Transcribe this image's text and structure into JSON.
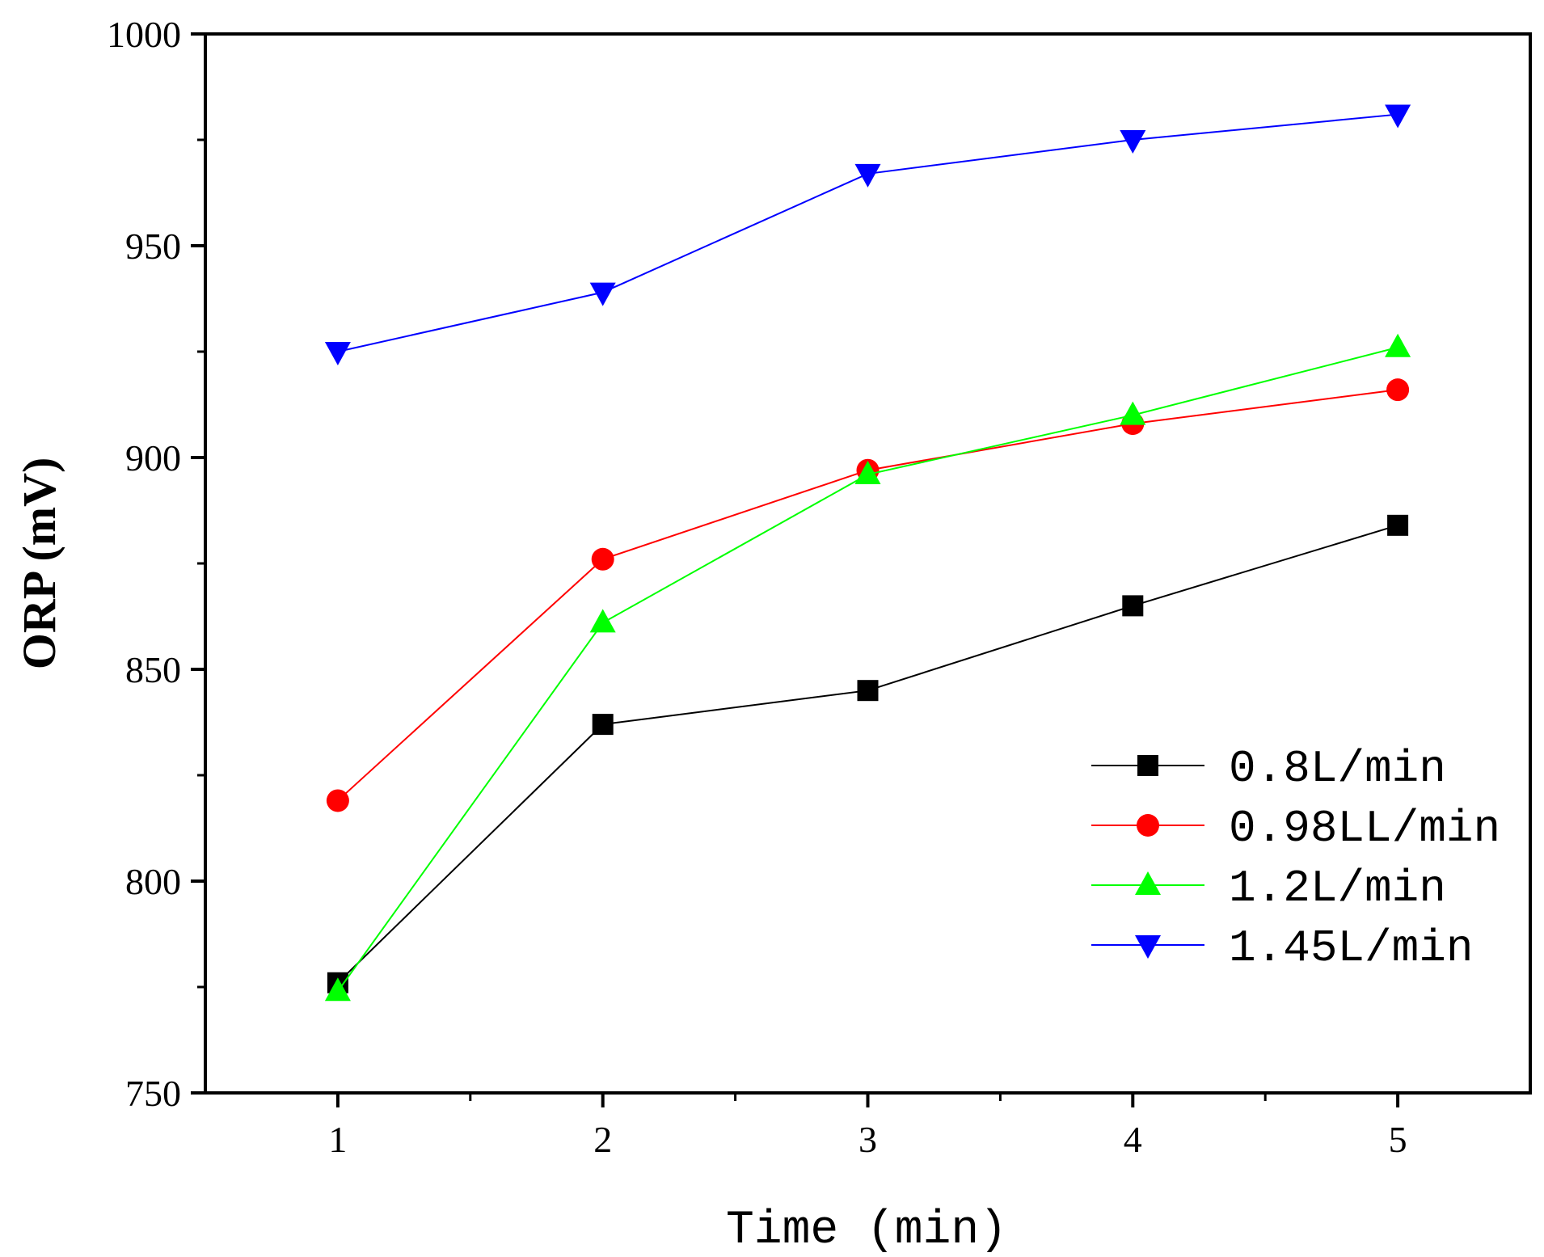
{
  "chart_data": {
    "type": "line",
    "title": "",
    "xlabel": "Time (min)",
    "ylabel": "ORP (mV)",
    "x": [
      1,
      2,
      3,
      4,
      5
    ],
    "xlim": [
      0.5,
      5.5
    ],
    "ylim": [
      750,
      1000
    ],
    "xticks": [
      "1",
      "2",
      "3",
      "4",
      "5"
    ],
    "yticks": [
      "750",
      "800",
      "850",
      "900",
      "950",
      "1000"
    ],
    "grid": false,
    "legend_position": "lower-right",
    "series": [
      {
        "name": "0.8L/min",
        "marker": "square",
        "color": "#000000",
        "values": [
          776,
          837,
          845,
          865,
          884
        ]
      },
      {
        "name": "0.98LL/min",
        "marker": "circle",
        "color": "#ff0000",
        "values": [
          819,
          876,
          897,
          908,
          916
        ]
      },
      {
        "name": "1.2L/min",
        "marker": "triangle-up",
        "color": "#00ff00",
        "values": [
          774,
          861,
          896,
          910,
          926
        ]
      },
      {
        "name": "1.45L/min",
        "marker": "triangle-down",
        "color": "#0000ff",
        "values": [
          925,
          939,
          967,
          975,
          981
        ]
      }
    ]
  }
}
